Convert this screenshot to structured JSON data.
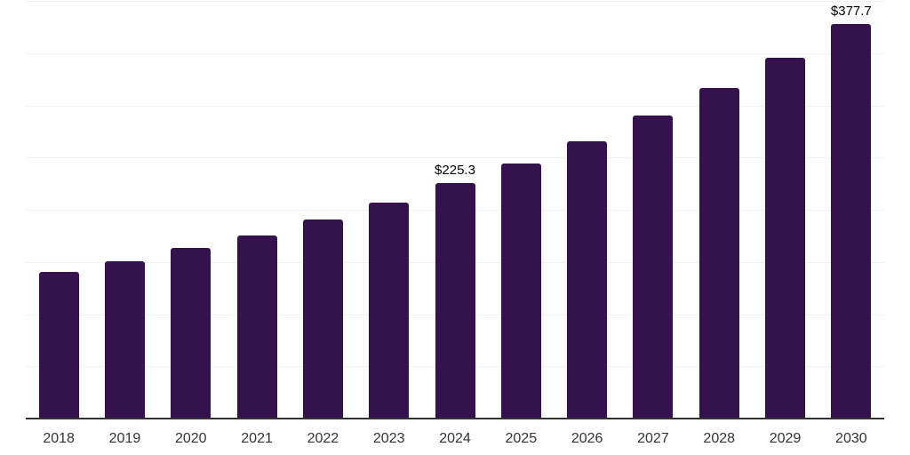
{
  "chart_data": {
    "type": "bar",
    "title": "",
    "xlabel": "",
    "ylabel": "",
    "categories": [
      "2018",
      "2019",
      "2020",
      "2021",
      "2022",
      "2023",
      "2024",
      "2025",
      "2026",
      "2027",
      "2028",
      "2029",
      "2030"
    ],
    "values": [
      140.1,
      150.9,
      163.4,
      175.7,
      190.9,
      207.2,
      225.3,
      244.5,
      265.6,
      289.8,
      316.6,
      345.2,
      377.7
    ],
    "point_labels": [
      "",
      "",
      "",
      "",
      "",
      "",
      "$225.3",
      "",
      "",
      "",
      "",
      "",
      "$377.7"
    ],
    "ylim": [
      0,
      400
    ],
    "gridline_step": 50,
    "grid": "horizontal",
    "legend_position": "none",
    "y_axis_labels_visible": false,
    "colors": {
      "bar": "#35124E",
      "axis_line": "#333333",
      "gridline": "#f2f2f2",
      "tick_label": "#333333",
      "data_label": "#000000",
      "background": "#ffffff"
    }
  }
}
